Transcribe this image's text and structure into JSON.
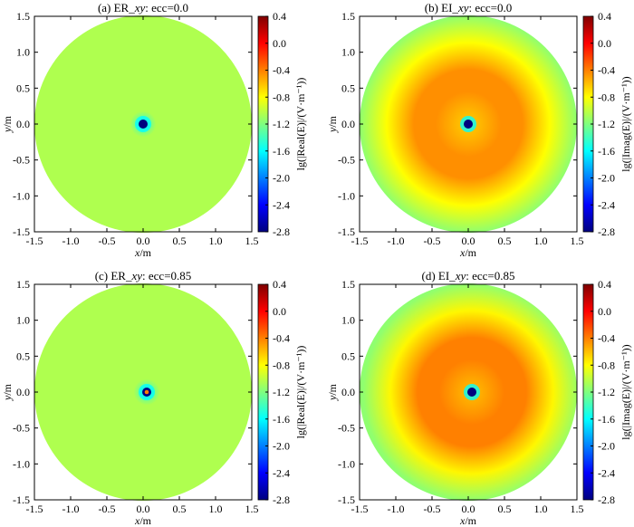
{
  "chart_data": [
    {
      "type": "heatmap",
      "title_prefix": "(a) ER_",
      "title_italic": "xy",
      "title_suffix": ": ecc=0.0",
      "xlabel_italic": "x",
      "xlabel_unit": "/m",
      "ylabel_italic": "y",
      "ylabel_unit": "/m",
      "xlim": [
        -1.5,
        1.5
      ],
      "ylim": [
        -1.5,
        1.5
      ],
      "x_ticks": [
        "-1.5",
        "-1.0",
        "-0.5",
        "0.0",
        "0.5",
        "1.0",
        "1.5"
      ],
      "y_ticks": [
        "1.5",
        "1.0",
        "0.5",
        "0.0",
        "-0.5",
        "-1.0",
        "-1.5"
      ],
      "colorbar_range": [
        -2.8,
        0.4
      ],
      "colorbar_ticks": [
        "0.4",
        "0.0",
        "-0.4",
        "-0.8",
        "-1.2",
        "-1.6",
        "-2.0",
        "-2.4",
        "-2.8"
      ],
      "colorbar_label": "lg(|Real(E)|/(V·m⁻¹))",
      "domain_radius": 1.5,
      "source_x": 0.0,
      "field": {
        "background": -1.05,
        "ring": null,
        "inner": null,
        "source": -2.8
      }
    },
    {
      "type": "heatmap",
      "title_prefix": "(b) EI_",
      "title_italic": "xy",
      "title_suffix": ": ecc=0.0",
      "xlabel_italic": "x",
      "xlabel_unit": "/m",
      "ylabel_italic": "y",
      "ylabel_unit": "/m",
      "xlim": [
        -1.5,
        1.5
      ],
      "ylim": [
        -1.5,
        1.5
      ],
      "x_ticks": [
        "-1.5",
        "-1.0",
        "-0.5",
        "0.0",
        "0.5",
        "1.0",
        "1.5"
      ],
      "y_ticks": [
        "1.5",
        "1.0",
        "0.5",
        "0.0",
        "-0.5",
        "-1.0",
        "-1.5"
      ],
      "colorbar_range": [
        -2.8,
        0.4
      ],
      "colorbar_ticks": [
        "0.4",
        "0.0",
        "-0.4",
        "-0.8",
        "-1.2",
        "-1.6",
        "-2.0",
        "-2.4",
        "-2.8"
      ],
      "colorbar_label": "lg(|Imag(E)|/(V·m⁻¹))",
      "domain_radius": 1.5,
      "source_x": 0.0,
      "field": {
        "background": -1.15,
        "ring": -0.45,
        "inner": -0.65,
        "source": -2.8
      }
    },
    {
      "type": "heatmap",
      "title_prefix": "(c) ER_",
      "title_italic": "xy",
      "title_suffix": ": ecc=0.85",
      "xlabel_italic": "x",
      "xlabel_unit": "/m",
      "ylabel_italic": "y",
      "ylabel_unit": "/m",
      "xlim": [
        -1.5,
        1.5
      ],
      "ylim": [
        -1.5,
        1.5
      ],
      "x_ticks": [
        "-1.5",
        "-1.0",
        "-0.5",
        "0.0",
        "0.5",
        "1.0",
        "1.5"
      ],
      "y_ticks": [
        "1.5",
        "1.0",
        "0.5",
        "0.0",
        "-0.5",
        "-1.0",
        "-1.5"
      ],
      "colorbar_range": [
        -2.8,
        0.4
      ],
      "colorbar_ticks": [
        "0.4",
        "0.0",
        "-0.4",
        "-0.8",
        "-1.2",
        "-1.6",
        "-2.0",
        "-2.4",
        "-2.8"
      ],
      "colorbar_label": "lg(|Real(E)|/(V·m⁻¹))",
      "domain_radius": 1.5,
      "source_x": 0.05,
      "field": {
        "background": -1.05,
        "ring": null,
        "inner": null,
        "source": -2.8,
        "core": -0.4
      }
    },
    {
      "type": "heatmap",
      "title_prefix": "(d) EI_",
      "title_italic": "xy",
      "title_suffix": ": ecc=0.85",
      "xlabel_italic": "x",
      "xlabel_unit": "/m",
      "ylabel_italic": "y",
      "ylabel_unit": "/m",
      "xlim": [
        -1.5,
        1.5
      ],
      "ylim": [
        -1.5,
        1.5
      ],
      "x_ticks": [
        "-1.5",
        "-1.0",
        "-0.5",
        "0.0",
        "0.5",
        "1.0",
        "1.5"
      ],
      "y_ticks": [
        "1.5",
        "1.0",
        "0.5",
        "0.0",
        "-0.5",
        "-1.0",
        "-1.5"
      ],
      "colorbar_range": [
        -2.8,
        0.4
      ],
      "colorbar_ticks": [
        "0.4",
        "0.0",
        "-0.4",
        "-0.8",
        "-1.2",
        "-1.6",
        "-2.0",
        "-2.4",
        "-2.8"
      ],
      "colorbar_label": "lg(|Imag(E)|/(V·m⁻¹))",
      "domain_radius": 1.5,
      "source_x": 0.05,
      "field": {
        "background": -1.15,
        "ring": -0.4,
        "inner": -0.6,
        "source": -2.8
      }
    }
  ]
}
